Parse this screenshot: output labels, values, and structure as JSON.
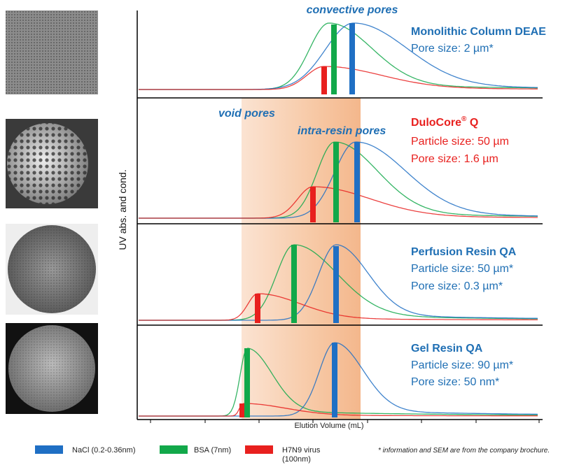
{
  "annotations": {
    "convective": "convective pores",
    "void": "void pores",
    "intra": "intra-resin pores"
  },
  "panels": [
    {
      "name": "Monolithic Column DEAE",
      "lines": [
        "Pore size: 2 µm*"
      ]
    },
    {
      "name": "DuloCore",
      "name_sup": "®",
      "name_suffix": " Q",
      "lines": [
        "Particle size: 50 µm",
        "Pore size: 1.6 µm"
      ]
    },
    {
      "name": "Perfusion Resin QA",
      "lines": [
        "Particle size: 50 µm*",
        "Pore size: 0.3 µm*"
      ]
    },
    {
      "name": "Gel Resin QA",
      "lines": [
        "Particle size: 90 µm*",
        "Pore size: 50 nm*"
      ]
    }
  ],
  "y_axis_label": "UV abs. and cond.",
  "x_axis_label": "Elution Volume (mL)",
  "legend": [
    {
      "label": [
        "NaCl (0.2-0.36nm)"
      ],
      "color": "#1f6fc4"
    },
    {
      "label": [
        "BSA (7nm)"
      ],
      "color": "#12a84a"
    },
    {
      "label": [
        "H7N9 virus",
        "(100nm)"
      ],
      "color": "#e8201e"
    }
  ],
  "footnote": "* information and SEM are from the company brochure."
}
